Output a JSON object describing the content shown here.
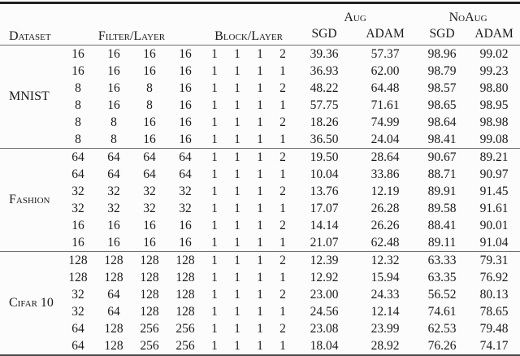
{
  "table": {
    "headers": {
      "dataset": "Dataset",
      "filter_layer": "Filter/Layer",
      "block_layer": "Block/Layer",
      "aug": "Aug",
      "noaug": "NoAug",
      "sgd": "SGD",
      "adam": "ADAM"
    },
    "sections": [
      {
        "dataset": "MNIST",
        "rows": [
          {
            "filters": [
              "16",
              "16",
              "16",
              "16"
            ],
            "blocks": [
              "1",
              "1",
              "1",
              "2"
            ],
            "aug_sgd": "39.36",
            "aug_adam": "57.37",
            "noaug_sgd": "98.96",
            "noaug_adam": "99.02"
          },
          {
            "filters": [
              "16",
              "16",
              "16",
              "16"
            ],
            "blocks": [
              "1",
              "1",
              "1",
              "1"
            ],
            "aug_sgd": "36.93",
            "aug_adam": "62.00",
            "noaug_sgd": "98.79",
            "noaug_adam": "99.23"
          },
          {
            "filters": [
              "8",
              "16",
              "8",
              "16"
            ],
            "blocks": [
              "1",
              "1",
              "1",
              "2"
            ],
            "aug_sgd": "48.22",
            "aug_adam": "64.48",
            "noaug_sgd": "98.57",
            "noaug_adam": "98.80"
          },
          {
            "filters": [
              "8",
              "16",
              "8",
              "16"
            ],
            "blocks": [
              "1",
              "1",
              "1",
              "1"
            ],
            "aug_sgd": "57.75",
            "aug_adam": "71.61",
            "noaug_sgd": "98.65",
            "noaug_adam": "98.95"
          },
          {
            "filters": [
              "8",
              "8",
              "16",
              "16"
            ],
            "blocks": [
              "1",
              "1",
              "1",
              "2"
            ],
            "aug_sgd": "18.26",
            "aug_adam": "74.99",
            "noaug_sgd": "98.64",
            "noaug_adam": "98.98"
          },
          {
            "filters": [
              "8",
              "8",
              "16",
              "16"
            ],
            "blocks": [
              "1",
              "1",
              "1",
              "1"
            ],
            "aug_sgd": "36.50",
            "aug_adam": "24.04",
            "noaug_sgd": "98.41",
            "noaug_adam": "99.08"
          }
        ]
      },
      {
        "dataset": "Fashion",
        "rows": [
          {
            "filters": [
              "64",
              "64",
              "64",
              "64"
            ],
            "blocks": [
              "1",
              "1",
              "1",
              "2"
            ],
            "aug_sgd": "19.50",
            "aug_adam": "28.64",
            "noaug_sgd": "90.67",
            "noaug_adam": "89.21"
          },
          {
            "filters": [
              "64",
              "64",
              "64",
              "64"
            ],
            "blocks": [
              "1",
              "1",
              "1",
              "1"
            ],
            "aug_sgd": "10.04",
            "aug_adam": "33.86",
            "noaug_sgd": "88.71",
            "noaug_adam": "90.97"
          },
          {
            "filters": [
              "32",
              "32",
              "32",
              "32"
            ],
            "blocks": [
              "1",
              "1",
              "1",
              "2"
            ],
            "aug_sgd": "13.76",
            "aug_adam": "12.19",
            "noaug_sgd": "89.91",
            "noaug_adam": "91.45"
          },
          {
            "filters": [
              "32",
              "32",
              "32",
              "32"
            ],
            "blocks": [
              "1",
              "1",
              "1",
              "1"
            ],
            "aug_sgd": "17.07",
            "aug_adam": "26.28",
            "noaug_sgd": "89.58",
            "noaug_adam": "91.61"
          },
          {
            "filters": [
              "16",
              "16",
              "16",
              "16"
            ],
            "blocks": [
              "1",
              "1",
              "1",
              "2"
            ],
            "aug_sgd": "14.14",
            "aug_adam": "26.26",
            "noaug_sgd": "88.41",
            "noaug_adam": "90.01"
          },
          {
            "filters": [
              "16",
              "16",
              "16",
              "16"
            ],
            "blocks": [
              "1",
              "1",
              "1",
              "1"
            ],
            "aug_sgd": "21.07",
            "aug_adam": "62.48",
            "noaug_sgd": "89.11",
            "noaug_adam": "91.04"
          }
        ]
      },
      {
        "dataset": "Cifar 10",
        "rows": [
          {
            "filters": [
              "128",
              "128",
              "128",
              "128"
            ],
            "blocks": [
              "1",
              "1",
              "1",
              "2"
            ],
            "aug_sgd": "12.39",
            "aug_adam": "12.32",
            "noaug_sgd": "63.33",
            "noaug_adam": "79.31"
          },
          {
            "filters": [
              "128",
              "128",
              "128",
              "128"
            ],
            "blocks": [
              "1",
              "1",
              "1",
              "1"
            ],
            "aug_sgd": "12.92",
            "aug_adam": "15.94",
            "noaug_sgd": "63.35",
            "noaug_adam": "76.92"
          },
          {
            "filters": [
              "32",
              "64",
              "128",
              "128"
            ],
            "blocks": [
              "1",
              "1",
              "1",
              "2"
            ],
            "aug_sgd": "23.00",
            "aug_adam": "24.33",
            "noaug_sgd": "56.52",
            "noaug_adam": "80.13"
          },
          {
            "filters": [
              "32",
              "64",
              "128",
              "128"
            ],
            "blocks": [
              "1",
              "1",
              "1",
              "1"
            ],
            "aug_sgd": "24.56",
            "aug_adam": "12.14",
            "noaug_sgd": "74.61",
            "noaug_adam": "78.65"
          },
          {
            "filters": [
              "64",
              "128",
              "256",
              "256"
            ],
            "blocks": [
              "1",
              "1",
              "1",
              "2"
            ],
            "aug_sgd": "23.08",
            "aug_adam": "23.99",
            "noaug_sgd": "62.53",
            "noaug_adam": "79.48"
          },
          {
            "filters": [
              "64",
              "128",
              "256",
              "256"
            ],
            "blocks": [
              "1",
              "1",
              "1",
              "1"
            ],
            "aug_sgd": "18.04",
            "aug_adam": "28.92",
            "noaug_sgd": "76.26",
            "noaug_adam": "74.17"
          }
        ]
      }
    ]
  }
}
